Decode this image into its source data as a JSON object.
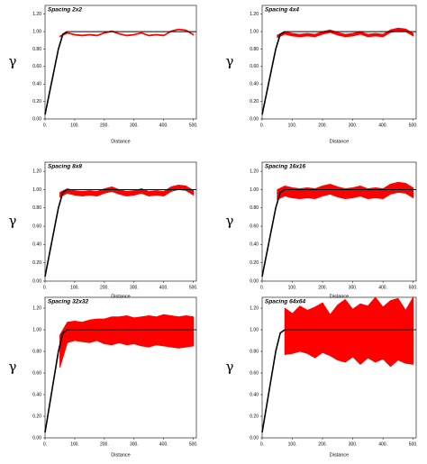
{
  "chart_data": [
    {
      "type": "variogram",
      "title": "Spacing 2x2",
      "ylabel": "γ",
      "xlabel": "Distance",
      "xlim": [
        0,
        510
      ],
      "ylim": [
        0,
        1.3
      ],
      "xticks": [
        {
          "value": 0,
          "label": "0."
        },
        {
          "value": 100,
          "label": "100."
        },
        {
          "value": 200,
          "label": "200."
        },
        {
          "value": 300,
          "label": "300."
        },
        {
          "value": 400,
          "label": "400."
        },
        {
          "value": 500,
          "label": "500."
        }
      ],
      "yticks": [
        {
          "value": 0,
          "label": "0.00"
        },
        {
          "value": 0.2,
          "label": "0.20"
        },
        {
          "value": 0.4,
          "label": "0.40"
        },
        {
          "value": 0.6,
          "label": "0.60"
        },
        {
          "value": 0.8,
          "label": "0.80"
        },
        {
          "value": 1,
          "label": "1.00"
        },
        {
          "value": 1.2,
          "label": "1.20"
        }
      ],
      "sill": 1,
      "model_color": "#000000",
      "band_color": "#ff0000",
      "model_x": [
        0,
        15,
        30,
        45,
        60,
        75
      ],
      "model_values": [
        0.05,
        0.3,
        0.55,
        0.8,
        0.97,
        1.0
      ],
      "x": [
        50,
        75,
        100,
        125,
        150,
        175,
        200,
        225,
        250,
        275,
        300,
        325,
        350,
        375,
        400,
        425,
        450,
        475,
        500
      ],
      "lower": [
        0.94,
        0.98,
        0.96,
        0.95,
        0.96,
        0.95,
        0.98,
        1.0,
        0.97,
        0.95,
        0.96,
        0.98,
        0.95,
        0.96,
        0.95,
        1.0,
        1.02,
        1.01,
        0.96
      ],
      "upper": [
        0.95,
        0.99,
        0.97,
        0.96,
        0.97,
        0.96,
        0.99,
        1.01,
        0.98,
        0.96,
        0.97,
        0.99,
        0.96,
        0.97,
        0.96,
        1.01,
        1.03,
        1.02,
        0.97
      ]
    },
    {
      "type": "variogram",
      "title": "Spacing 4x4",
      "ylabel": "γ",
      "xlabel": "Distance",
      "xlim": [
        0,
        510
      ],
      "ylim": [
        0,
        1.3
      ],
      "xticks": [
        {
          "value": 0,
          "label": "0."
        },
        {
          "value": 100,
          "label": "100."
        },
        {
          "value": 200,
          "label": "200."
        },
        {
          "value": 300,
          "label": "300."
        },
        {
          "value": 400,
          "label": "400."
        },
        {
          "value": 500,
          "label": "500."
        }
      ],
      "yticks": [
        {
          "value": 0,
          "label": "0.00"
        },
        {
          "value": 0.2,
          "label": "0.20"
        },
        {
          "value": 0.4,
          "label": "0.40"
        },
        {
          "value": 0.6,
          "label": "0.60"
        },
        {
          "value": 0.8,
          "label": "0.80"
        },
        {
          "value": 1,
          "label": "1.00"
        },
        {
          "value": 1.2,
          "label": "1.20"
        }
      ],
      "sill": 1,
      "model_color": "#000000",
      "band_color": "#ff0000",
      "model_x": [
        0,
        15,
        30,
        45,
        60,
        75
      ],
      "model_values": [
        0.05,
        0.3,
        0.55,
        0.8,
        0.97,
        1.0
      ],
      "x": [
        50,
        75,
        100,
        125,
        150,
        175,
        200,
        225,
        250,
        275,
        300,
        325,
        350,
        375,
        400,
        425,
        450,
        475,
        500
      ],
      "lower": [
        0.93,
        0.97,
        0.95,
        0.94,
        0.95,
        0.94,
        0.97,
        0.99,
        0.96,
        0.94,
        0.95,
        0.97,
        0.94,
        0.95,
        0.94,
        0.99,
        1.01,
        1.0,
        0.95
      ],
      "upper": [
        0.96,
        1.0,
        0.98,
        0.97,
        0.98,
        0.97,
        1.0,
        1.02,
        0.99,
        0.97,
        0.98,
        1.0,
        0.97,
        0.98,
        0.97,
        1.02,
        1.04,
        1.03,
        0.98
      ]
    },
    {
      "type": "variogram",
      "title": "Spacing 8x8",
      "ylabel": "γ",
      "xlabel": "Distance",
      "xlim": [
        0,
        510
      ],
      "ylim": [
        0,
        1.3
      ],
      "xticks": [
        {
          "value": 0,
          "label": "0."
        },
        {
          "value": 100,
          "label": "100."
        },
        {
          "value": 200,
          "label": "200."
        },
        {
          "value": 300,
          "label": "300."
        },
        {
          "value": 400,
          "label": "400."
        },
        {
          "value": 500,
          "label": "500."
        }
      ],
      "yticks": [
        {
          "value": 0,
          "label": "0.00"
        },
        {
          "value": 0.2,
          "label": "0.20"
        },
        {
          "value": 0.4,
          "label": "0.40"
        },
        {
          "value": 0.6,
          "label": "0.60"
        },
        {
          "value": 0.8,
          "label": "0.80"
        },
        {
          "value": 1,
          "label": "1.00"
        },
        {
          "value": 1.2,
          "label": "1.20"
        }
      ],
      "sill": 1,
      "model_color": "#000000",
      "band_color": "#ff0000",
      "model_x": [
        0,
        15,
        30,
        45,
        60,
        75
      ],
      "model_values": [
        0.05,
        0.3,
        0.55,
        0.8,
        0.97,
        1.0
      ],
      "x": [
        50,
        75,
        100,
        125,
        150,
        175,
        200,
        225,
        250,
        275,
        300,
        325,
        350,
        375,
        400,
        425,
        450,
        475,
        500
      ],
      "lower": [
        0.92,
        0.96,
        0.94,
        0.93,
        0.94,
        0.93,
        0.96,
        0.98,
        0.95,
        0.93,
        0.94,
        0.96,
        0.93,
        0.94,
        0.93,
        0.98,
        1.0,
        0.99,
        0.94
      ],
      "upper": [
        0.97,
        1.01,
        0.99,
        0.98,
        0.99,
        0.98,
        1.01,
        1.03,
        1.0,
        0.98,
        0.99,
        1.01,
        0.98,
        0.99,
        0.98,
        1.03,
        1.05,
        1.04,
        0.99
      ]
    },
    {
      "type": "variogram",
      "title": "Spacing 16x16",
      "ylabel": "γ",
      "xlabel": "Distance",
      "xlim": [
        0,
        510
      ],
      "ylim": [
        0,
        1.3
      ],
      "xticks": [
        {
          "value": 0,
          "label": "0."
        },
        {
          "value": 100,
          "label": "100."
        },
        {
          "value": 200,
          "label": "200."
        },
        {
          "value": 300,
          "label": "300."
        },
        {
          "value": 400,
          "label": "400."
        },
        {
          "value": 500,
          "label": "500."
        }
      ],
      "yticks": [
        {
          "value": 0,
          "label": "0.00"
        },
        {
          "value": 0.2,
          "label": "0.20"
        },
        {
          "value": 0.4,
          "label": "0.40"
        },
        {
          "value": 0.6,
          "label": "0.60"
        },
        {
          "value": 0.8,
          "label": "0.80"
        },
        {
          "value": 1,
          "label": "1.00"
        },
        {
          "value": 1.2,
          "label": "1.20"
        }
      ],
      "sill": 1,
      "model_color": "#000000",
      "band_color": "#ff0000",
      "model_x": [
        0,
        15,
        30,
        45,
        60,
        75
      ],
      "model_values": [
        0.05,
        0.3,
        0.55,
        0.8,
        0.97,
        1.0
      ],
      "x": [
        50,
        75,
        100,
        125,
        150,
        175,
        200,
        225,
        250,
        275,
        300,
        325,
        350,
        375,
        400,
        425,
        450,
        475,
        500
      ],
      "lower": [
        0.89,
        0.93,
        0.91,
        0.9,
        0.91,
        0.9,
        0.93,
        0.95,
        0.92,
        0.9,
        0.91,
        0.93,
        0.9,
        0.91,
        0.9,
        0.95,
        0.97,
        0.96,
        0.91
      ],
      "upper": [
        1.0,
        1.04,
        1.02,
        1.01,
        1.02,
        1.01,
        1.04,
        1.06,
        1.03,
        1.01,
        1.02,
        1.04,
        1.01,
        1.02,
        1.01,
        1.06,
        1.08,
        1.07,
        1.02
      ]
    },
    {
      "type": "variogram",
      "title": "Spacing 32x32",
      "ylabel": "γ",
      "xlabel": "Distance",
      "xlim": [
        0,
        510
      ],
      "ylim": [
        0,
        1.3
      ],
      "xticks": [
        {
          "value": 0,
          "label": "0."
        },
        {
          "value": 100,
          "label": "100."
        },
        {
          "value": 200,
          "label": "200."
        },
        {
          "value": 300,
          "label": "300."
        },
        {
          "value": 400,
          "label": "400."
        },
        {
          "value": 500,
          "label": "500."
        }
      ],
      "yticks": [
        {
          "value": 0,
          "label": "0.00"
        },
        {
          "value": 0.2,
          "label": "0.20"
        },
        {
          "value": 0.4,
          "label": "0.40"
        },
        {
          "value": 0.6,
          "label": "0.60"
        },
        {
          "value": 0.8,
          "label": "0.80"
        },
        {
          "value": 1,
          "label": "1.00"
        },
        {
          "value": 1.2,
          "label": "1.20"
        }
      ],
      "sill": 1,
      "model_color": "#000000",
      "band_color": "#ff0000",
      "model_x": [
        0,
        15,
        30,
        45,
        60,
        75
      ],
      "model_values": [
        0.05,
        0.3,
        0.55,
        0.8,
        0.97,
        1.0
      ],
      "x": [
        50,
        75,
        100,
        125,
        150,
        175,
        200,
        225,
        250,
        275,
        300,
        325,
        350,
        375,
        400,
        425,
        450,
        475,
        500
      ],
      "lower": [
        0.65,
        0.88,
        0.9,
        0.89,
        0.88,
        0.9,
        0.87,
        0.86,
        0.88,
        0.86,
        0.87,
        0.85,
        0.84,
        0.86,
        0.85,
        0.84,
        0.83,
        0.84,
        0.85
      ],
      "upper": [
        0.95,
        1.07,
        1.08,
        1.07,
        1.09,
        1.1,
        1.1,
        1.12,
        1.12,
        1.13,
        1.11,
        1.12,
        1.13,
        1.12,
        1.14,
        1.13,
        1.12,
        1.13,
        1.12
      ]
    },
    {
      "type": "variogram",
      "title": "Spacing 64x64",
      "ylabel": "γ",
      "xlabel": "Distance",
      "xlim": [
        0,
        510
      ],
      "ylim": [
        0,
        1.3
      ],
      "xticks": [
        {
          "value": 0,
          "label": "0."
        },
        {
          "value": 100,
          "label": "100."
        },
        {
          "value": 200,
          "label": "200."
        },
        {
          "value": 300,
          "label": "300."
        },
        {
          "value": 400,
          "label": "400."
        },
        {
          "value": 500,
          "label": "500."
        }
      ],
      "yticks": [
        {
          "value": 0,
          "label": "0.00"
        },
        {
          "value": 0.2,
          "label": "0.20"
        },
        {
          "value": 0.4,
          "label": "0.40"
        },
        {
          "value": 0.6,
          "label": "0.60"
        },
        {
          "value": 0.8,
          "label": "0.80"
        },
        {
          "value": 1,
          "label": "1.00"
        },
        {
          "value": 1.2,
          "label": "1.20"
        }
      ],
      "sill": 1,
      "model_color": "#000000",
      "band_color": "#ff0000",
      "model_x": [
        0,
        15,
        30,
        45,
        60,
        75
      ],
      "model_values": [
        0.05,
        0.3,
        0.55,
        0.8,
        0.97,
        1.0
      ],
      "x": [
        50,
        75,
        100,
        125,
        150,
        175,
        200,
        225,
        250,
        275,
        300,
        325,
        350,
        375,
        400,
        425,
        450,
        475,
        500
      ],
      "lower": [
        null,
        0.77,
        0.78,
        0.8,
        0.78,
        0.74,
        0.79,
        0.76,
        0.72,
        0.7,
        0.75,
        0.68,
        0.74,
        0.7,
        0.73,
        0.66,
        0.72,
        0.69,
        0.68
      ],
      "upper": [
        null,
        1.2,
        1.15,
        1.22,
        1.18,
        1.21,
        1.25,
        1.14,
        1.23,
        1.28,
        1.19,
        1.24,
        1.22,
        1.3,
        1.21,
        1.27,
        1.29,
        1.18,
        1.3
      ]
    }
  ]
}
